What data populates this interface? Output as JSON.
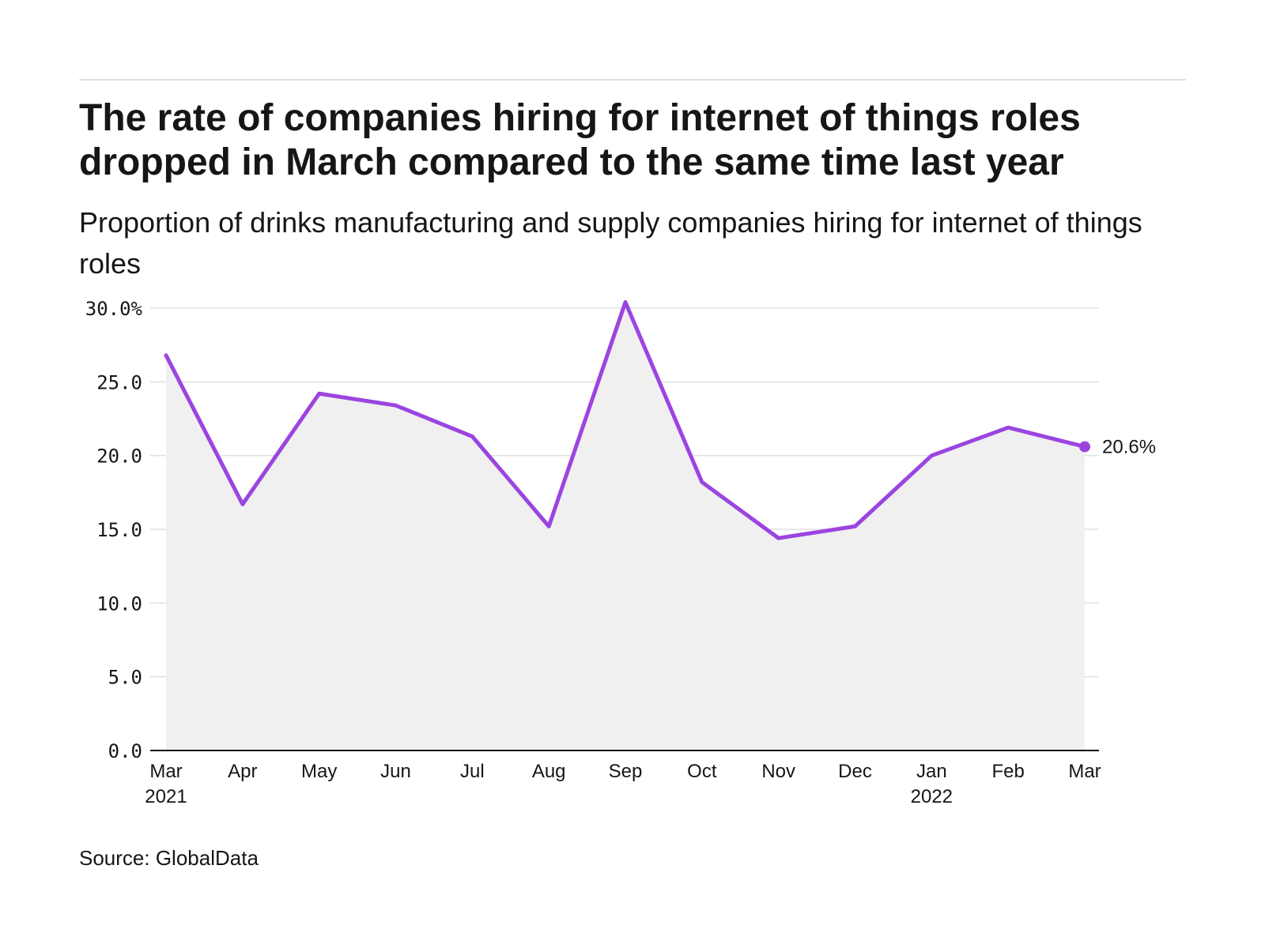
{
  "header": {
    "title": "The rate of companies hiring for internet of things roles dropped in March compared to the same time last year",
    "subtitle": "Proportion of drinks manufacturing and supply companies hiring for internet of things roles"
  },
  "footer": {
    "source": "Source: GlobalData"
  },
  "colors": {
    "line": "#9b45e0",
    "area": "#f0f0f0",
    "grid": "#e0e0e0",
    "axis": "#161616"
  },
  "chart_data": {
    "type": "area",
    "title": "The rate of companies hiring for internet of things roles dropped in March compared to the same time last year",
    "subtitle": "Proportion of drinks manufacturing and supply companies hiring for internet of things roles",
    "xlabel": "",
    "ylabel": "",
    "categories": [
      "Mar",
      "Apr",
      "May",
      "Jun",
      "Jul",
      "Aug",
      "Sep",
      "Oct",
      "Nov",
      "Dec",
      "Jan",
      "Feb",
      "Mar"
    ],
    "category_years": [
      "2021",
      "",
      "",
      "",
      "",
      "",
      "",
      "",
      "",
      "",
      "2022",
      "",
      ""
    ],
    "series": [
      {
        "name": "Proportion of companies hiring for internet of things roles",
        "values": [
          26.8,
          16.7,
          24.2,
          23.4,
          21.3,
          15.2,
          30.4,
          18.2,
          14.4,
          15.2,
          20.0,
          21.9,
          20.6
        ]
      }
    ],
    "ylim": [
      0,
      30
    ],
    "yticks": [
      0,
      5,
      10,
      15,
      20,
      25,
      30
    ],
    "ytick_labels": [
      "0.0",
      "5.0",
      "10.0",
      "15.0",
      "20.0",
      "25.0",
      "30.0%"
    ],
    "end_label": "20.6%",
    "grid": true
  }
}
